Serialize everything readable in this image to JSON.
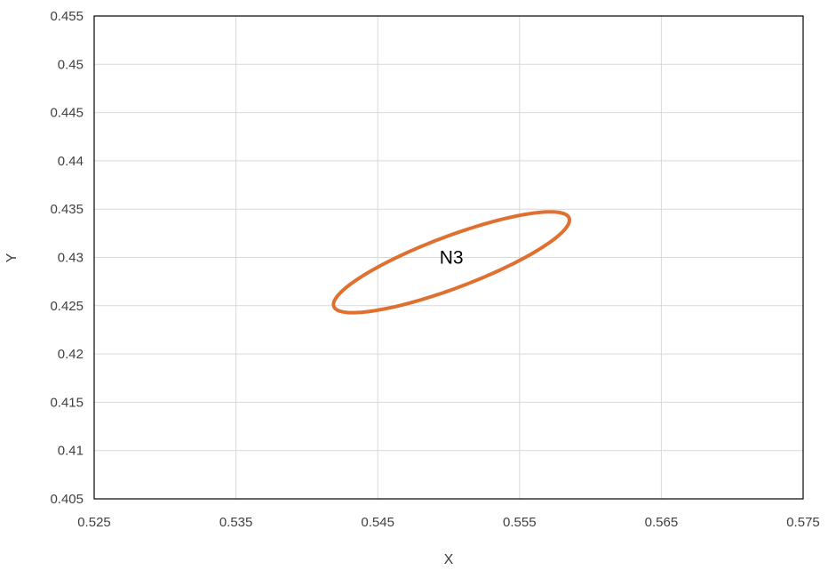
{
  "chart_data": {
    "type": "scatter",
    "title": "",
    "xlabel": "X",
    "ylabel": "Y",
    "xlim": [
      0.525,
      0.575
    ],
    "ylim": [
      0.405,
      0.455
    ],
    "grid": true,
    "x_ticks": [
      "0.525",
      "0.535",
      "0.545",
      "0.555",
      "0.565",
      "0.575"
    ],
    "y_ticks": [
      "0.405",
      "0.41",
      "0.415",
      "0.42",
      "0.425",
      "0.43",
      "0.435",
      "0.44",
      "0.445",
      "0.45",
      "0.455"
    ],
    "series": [
      {
        "color": "#E07030",
        "shape": "ellipse",
        "center": [
          0.5502,
          0.4295
        ],
        "semi_major": 0.0095,
        "semi_minor": 0.0025,
        "angle_deg": 30
      }
    ],
    "annotations": [
      {
        "text": "N3",
        "x": 0.5502,
        "y": 0.43
      }
    ]
  }
}
